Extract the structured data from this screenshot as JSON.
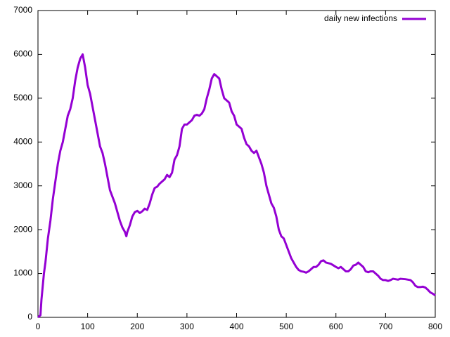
{
  "chart_data": {
    "type": "line",
    "x": [
      0,
      5,
      7,
      12,
      15,
      20,
      25,
      30,
      35,
      40,
      45,
      50,
      55,
      60,
      65,
      70,
      75,
      80,
      85,
      90,
      95,
      100,
      105,
      110,
      115,
      120,
      125,
      130,
      135,
      140,
      145,
      150,
      155,
      160,
      165,
      170,
      175,
      178,
      180,
      185,
      190,
      195,
      200,
      205,
      210,
      215,
      220,
      225,
      230,
      235,
      240,
      245,
      250,
      255,
      260,
      265,
      270,
      275,
      280,
      285,
      290,
      295,
      300,
      305,
      310,
      315,
      320,
      325,
      330,
      335,
      340,
      345,
      350,
      355,
      360,
      365,
      370,
      375,
      380,
      385,
      390,
      395,
      400,
      405,
      410,
      415,
      420,
      425,
      430,
      435,
      440,
      445,
      450,
      455,
      460,
      465,
      470,
      475,
      480,
      485,
      490,
      495,
      500,
      505,
      510,
      515,
      520,
      525,
      530,
      535,
      540,
      545,
      550,
      555,
      560,
      565,
      570,
      575,
      580,
      590,
      600,
      605,
      610,
      615,
      620,
      625,
      630,
      635,
      640,
      645,
      650,
      655,
      660,
      665,
      670,
      675,
      680,
      685,
      690,
      695,
      700,
      705,
      710,
      715,
      720,
      725,
      730,
      740,
      750,
      755,
      760,
      765,
      770,
      775,
      780,
      785,
      790,
      795,
      800
    ],
    "series": [
      {
        "name": "daily new infections",
        "color": "#9400d3",
        "values": [
          0,
          50,
          400,
          1000,
          1250,
          1800,
          2200,
          2700,
          3100,
          3500,
          3800,
          4000,
          4300,
          4600,
          4750,
          5000,
          5400,
          5700,
          5900,
          6000,
          5700,
          5300,
          5100,
          4800,
          4500,
          4200,
          3900,
          3750,
          3500,
          3200,
          2900,
          2750,
          2600,
          2400,
          2200,
          2050,
          1950,
          1850,
          1950,
          2100,
          2300,
          2400,
          2430,
          2380,
          2420,
          2480,
          2450,
          2600,
          2800,
          2950,
          2980,
          3050,
          3100,
          3150,
          3250,
          3200,
          3300,
          3600,
          3700,
          3900,
          4300,
          4400,
          4400,
          4450,
          4500,
          4600,
          4620,
          4600,
          4650,
          4750,
          5000,
          5200,
          5450,
          5550,
          5500,
          5450,
          5200,
          5000,
          4950,
          4900,
          4700,
          4600,
          4400,
          4350,
          4300,
          4100,
          3950,
          3900,
          3800,
          3750,
          3800,
          3650,
          3500,
          3300,
          3000,
          2800,
          2600,
          2500,
          2300,
          2000,
          1850,
          1800,
          1650,
          1500,
          1350,
          1250,
          1150,
          1080,
          1050,
          1040,
          1020,
          1050,
          1100,
          1150,
          1150,
          1200,
          1280,
          1300,
          1250,
          1220,
          1150,
          1120,
          1150,
          1100,
          1050,
          1050,
          1100,
          1180,
          1200,
          1250,
          1200,
          1150,
          1050,
          1030,
          1050,
          1050,
          1000,
          950,
          880,
          850,
          850,
          830,
          850,
          880,
          870,
          860,
          880,
          870,
          850,
          800,
          720,
          690,
          690,
          700,
          680,
          630,
          570,
          540,
          500
        ]
      }
    ],
    "xlim": [
      0,
      800
    ],
    "xticks": [
      0,
      100,
      200,
      300,
      400,
      500,
      600,
      700,
      800
    ],
    "ylim": [
      0,
      7000
    ],
    "yticks": [
      0,
      1000,
      2000,
      3000,
      4000,
      5000,
      6000,
      7000
    ],
    "legend": "top-right"
  }
}
